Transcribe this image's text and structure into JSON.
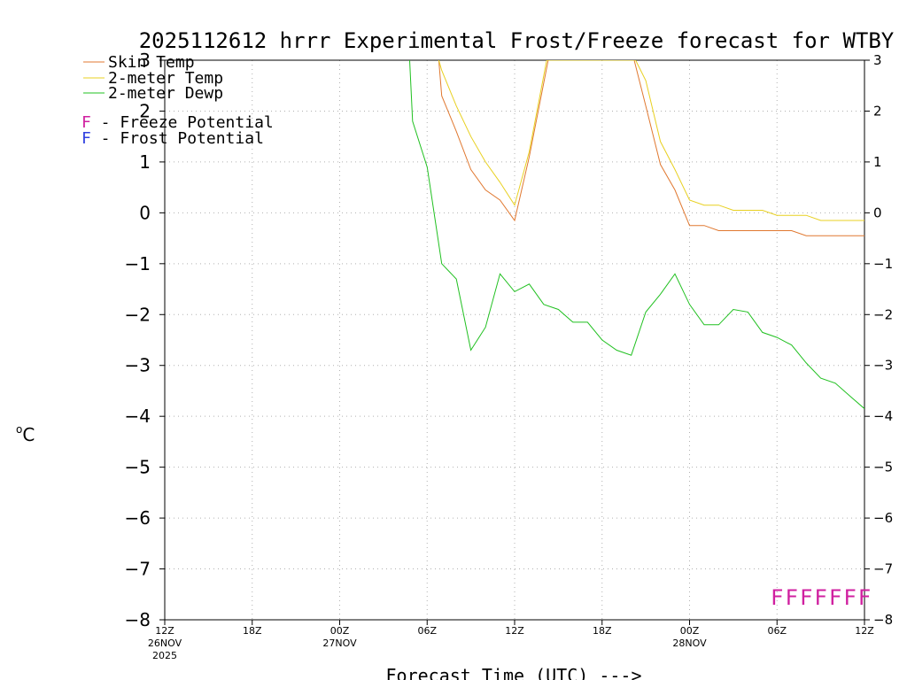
{
  "chart_data": {
    "type": "line",
    "title": "2025112612 hrrr Experimental Frost/Freeze forecast for WTBY",
    "xlabel": "Forecast Time (UTC) --->",
    "ylabel": "°C",
    "ylabel_base": "C",
    "ylabel_sup": "o",
    "ylim": [
      -8,
      3
    ],
    "xlim": [
      0,
      48
    ],
    "yticks": [
      "-8",
      "-7",
      "-6",
      "-5",
      "-4",
      "-3",
      "-2",
      "-1",
      "0",
      "1",
      "2",
      "3"
    ],
    "xticks": [
      {
        "x": 0,
        "label": "12Z",
        "date": "26NOV",
        "year": "2025"
      },
      {
        "x": 6,
        "label": "18Z"
      },
      {
        "x": 12,
        "label": "00Z",
        "date": "27NOV"
      },
      {
        "x": 18,
        "label": "06Z"
      },
      {
        "x": 24,
        "label": "12Z"
      },
      {
        "x": 30,
        "label": "18Z"
      },
      {
        "x": 36,
        "label": "00Z",
        "date": "28NOV"
      },
      {
        "x": 42,
        "label": "06Z"
      },
      {
        "x": 48,
        "label": "12Z"
      }
    ],
    "series": [
      {
        "name": "Skin Temp",
        "color": "#e07830",
        "x": [
          18.8,
          19,
          20,
          21,
          22,
          23,
          24,
          25,
          26.3,
          32.2,
          33,
          34,
          35,
          36,
          37,
          38,
          39,
          40,
          41,
          42,
          43,
          44,
          45,
          46,
          47,
          48
        ],
        "y": [
          3,
          2.3,
          1.6,
          0.85,
          0.45,
          0.25,
          -0.15,
          1.1,
          3,
          3,
          2.1,
          0.95,
          0.45,
          -0.25,
          -0.25,
          -0.35,
          -0.35,
          -0.35,
          -0.35,
          -0.35,
          -0.35,
          -0.45,
          -0.45,
          -0.45,
          -0.45,
          -0.45
        ]
      },
      {
        "name": "2-meter Temp",
        "color": "#e8d020",
        "x": [
          18.8,
          19,
          20,
          21,
          22,
          23,
          24,
          25,
          26.2,
          32.3,
          33,
          34,
          35,
          36,
          37,
          38,
          39,
          40,
          41,
          42,
          43,
          44,
          45,
          46,
          47,
          48
        ],
        "y": [
          3,
          2.8,
          2.1,
          1.5,
          1.0,
          0.6,
          0.15,
          1.2,
          3,
          3,
          2.6,
          1.4,
          0.85,
          0.25,
          0.15,
          0.15,
          0.05,
          0.05,
          0.05,
          -0.05,
          -0.05,
          -0.05,
          -0.15,
          -0.15,
          -0.15,
          -0.15
        ]
      },
      {
        "name": "2-meter Dewp",
        "color": "#20c020",
        "x": [
          16.8,
          17,
          18,
          19,
          20,
          21,
          22,
          23,
          24,
          25,
          26,
          27,
          28,
          29,
          30,
          31,
          32,
          33,
          34,
          35,
          36,
          37,
          38,
          39,
          40,
          41,
          42,
          43,
          44,
          45,
          46,
          47,
          48
        ],
        "y": [
          3,
          1.8,
          0.9,
          -1.0,
          -1.3,
          -2.7,
          -2.25,
          -1.2,
          -1.55,
          -1.4,
          -1.8,
          -1.9,
          -2.15,
          -2.15,
          -2.5,
          -2.7,
          -2.8,
          -1.95,
          -1.6,
          -1.2,
          -1.8,
          -2.2,
          -2.2,
          -1.9,
          -1.95,
          -2.35,
          -2.45,
          -2.6,
          -2.95,
          -3.25,
          -3.35,
          -3.6,
          -3.85
        ]
      }
    ],
    "legend": [
      {
        "label": "Skin Temp",
        "color": "#e07830"
      },
      {
        "label": "2-meter Temp",
        "color": "#e8d020"
      },
      {
        "label": "2-meter Dewp",
        "color": "#20c020"
      }
    ],
    "potential_legend": [
      {
        "letter": "F",
        "text": " - Freeze Potential",
        "color": "#d020a0"
      },
      {
        "letter": "F",
        "text": " - Frost Potential",
        "color": "#3040e0"
      }
    ],
    "freeze_marks": {
      "x": [
        42,
        43,
        44,
        45,
        46,
        47,
        48
      ],
      "y": -7.55,
      "letter": "F",
      "color": "#d020a0"
    }
  }
}
